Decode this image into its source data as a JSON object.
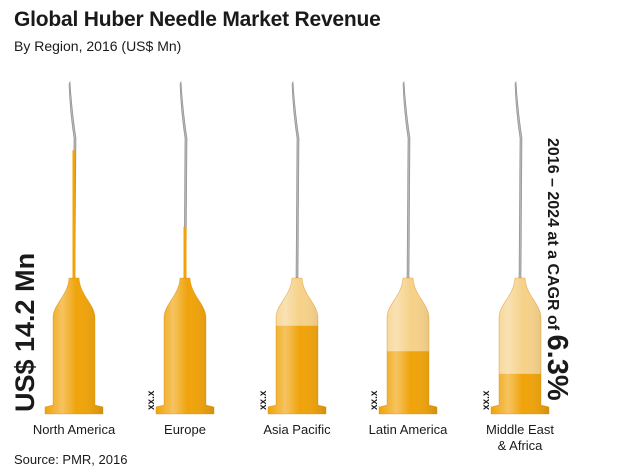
{
  "header": {
    "title": "Global Huber Needle Market Revenue",
    "subtitle": "By Region, 2016 (US$ Mn)"
  },
  "source": "Source: PMR, 2016",
  "total": "US$ 14.2 Mn",
  "cagr": {
    "text": "2016 – 2024 at a CAGR of",
    "value": "6.3%"
  },
  "colors": {
    "fill": "#f0a30a",
    "fill_pale": "#f6d189",
    "needle": "#b5b5b5",
    "needle_dark": "#8a8a8a"
  },
  "chart_data": {
    "type": "bar",
    "categories": [
      "North America",
      "Europe",
      "Asia Pacific",
      "Latin America",
      "Middle East\n& Africa"
    ],
    "value_labels": [
      "",
      "xx.x",
      "xx.x",
      "xx.x",
      "xx.x"
    ],
    "fill_fraction": [
      0.9,
      0.63,
      0.28,
      0.19,
      0.11
    ],
    "total": "US$ 14.2 Mn",
    "cagr": "6.3%"
  }
}
